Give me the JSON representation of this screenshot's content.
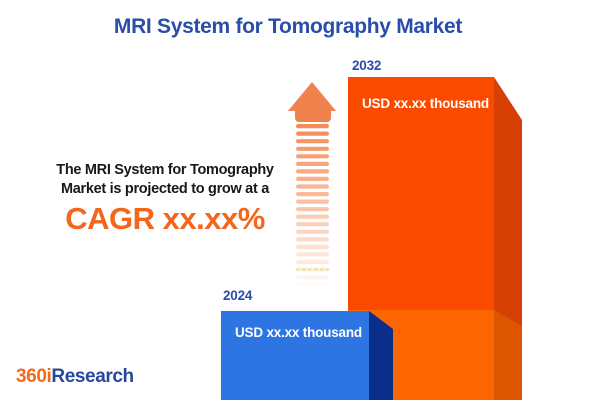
{
  "title": "MRI System for Tomography Market",
  "annotation": {
    "line1": "The MRI System for Tomography",
    "line2": "Market is projected to grow at a",
    "cagr": "CAGR xx.xx%"
  },
  "chart": {
    "bars": [
      {
        "year": "2024",
        "value_label": "USD xx.xx thousand"
      },
      {
        "year": "2032",
        "value_label": "USD xx.xx thousand"
      }
    ]
  },
  "chart_data": {
    "type": "bar",
    "categories": [
      "2024",
      "2032"
    ],
    "values": [
      "xx.xx",
      "xx.xx"
    ],
    "unit": "USD thousand",
    "value_labels": [
      "USD xx.xx thousand",
      "USD xx.xx thousand"
    ],
    "values_masked": true,
    "relative_heights": [
      0.28,
      1.0
    ],
    "title": "MRI System for Tomography Market",
    "annotation": "The MRI System for Tomography Market is projected to grow at a CAGR xx.xx%",
    "cagr": "xx.xx%",
    "axes": "none",
    "legend": "none",
    "style": "3d-bars with growth arrow"
  },
  "logo": {
    "brand_prefix": "360i",
    "brand_suffix": "Research"
  },
  "colors": {
    "title_blue": "#2B4DA9",
    "cagr_orange": "#F4661C",
    "text_dark": "#17171C",
    "bar_2032_front": "#FA4A00",
    "bar_2032_side": "#D64005",
    "bar_2032_lower_front": "#FB6600",
    "bar_2032_lower_side": "#DC5500",
    "bar_2024_front": "#2E75E4",
    "bar_2024_side": "#0A2F8B",
    "arrow_salmon": "#F0824E",
    "stripe_orange": "#F5854D",
    "logo_orange": "#F26A1B",
    "logo_blue": "#26479E",
    "value_label_white": "#FFFFFF"
  }
}
